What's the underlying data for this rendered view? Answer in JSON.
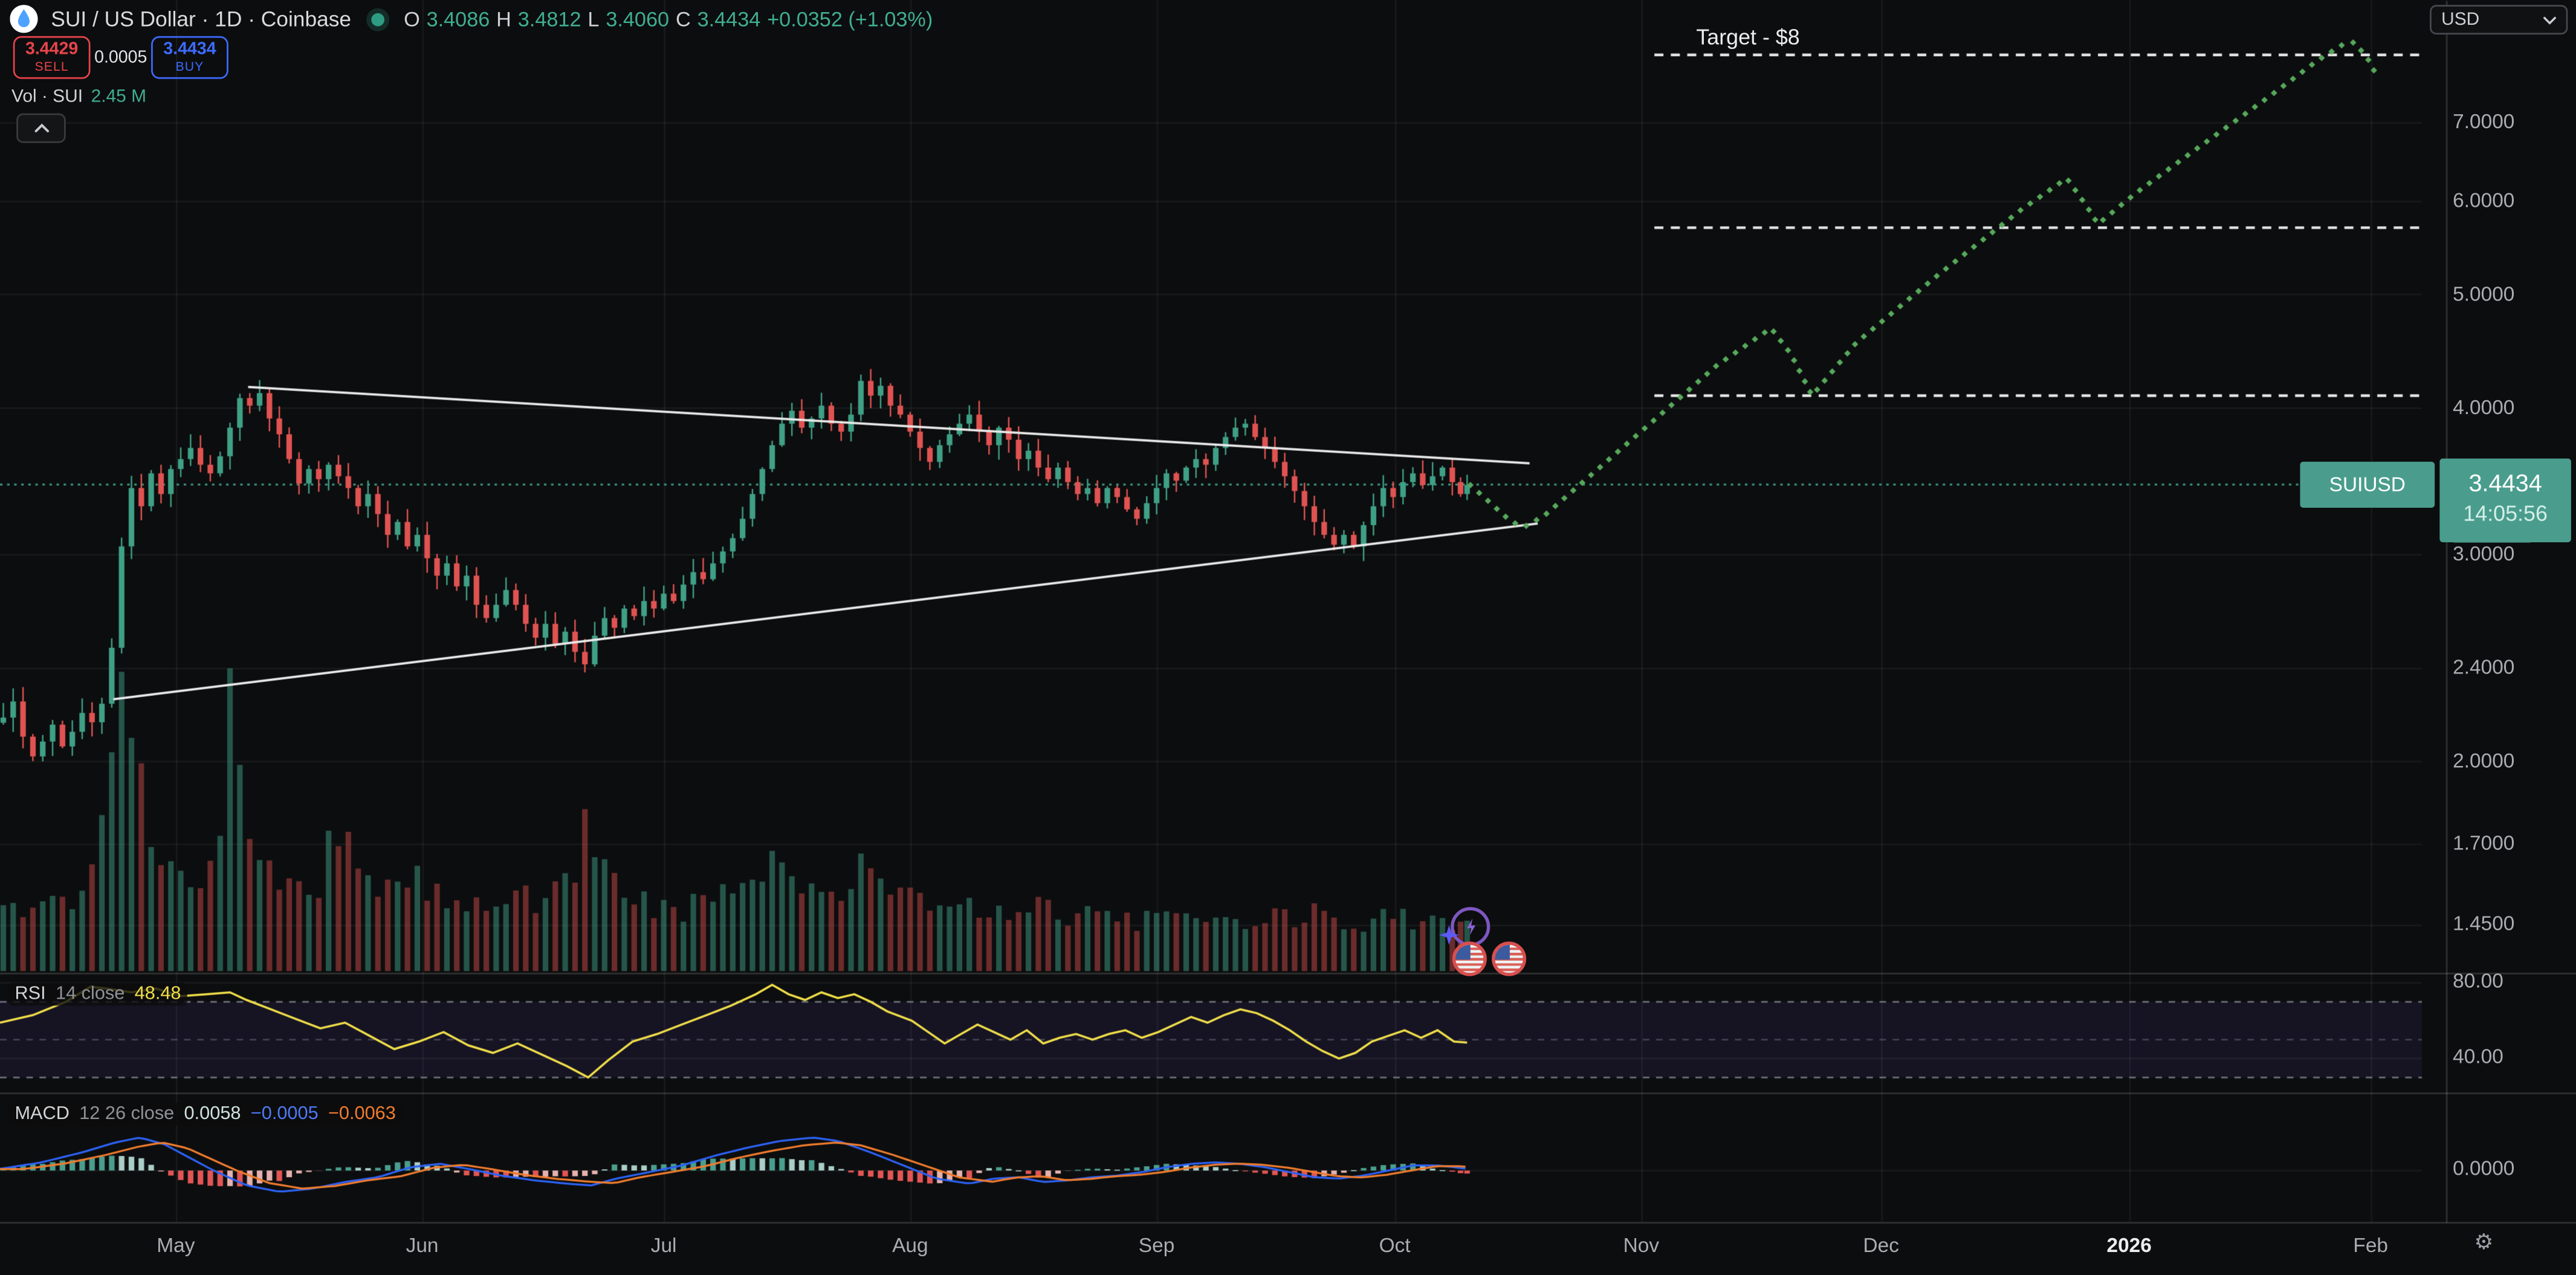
{
  "header": {
    "symbol": "SUI / US Dollar · 1D · Coinbase",
    "ohlc": {
      "o_label": "O",
      "o": "3.4086",
      "h_label": "H",
      "h": "3.4812",
      "l_label": "L",
      "l": "3.4060",
      "c_label": "C",
      "c": "3.4434",
      "change": "+0.0352 (+1.03%)"
    },
    "sell": {
      "price": "3.4429",
      "label": "SELL"
    },
    "spread": "0.0005",
    "buy": {
      "price": "3.4434",
      "label": "BUY"
    },
    "volume_row": {
      "label": "Vol · SUI",
      "value": "2.45 M"
    }
  },
  "annotation": {
    "target_label": "Target - $8"
  },
  "price_scale": {
    "currency": "USD",
    "price_label": {
      "symbol": "SUIUSD",
      "price": "3.4434",
      "countdown": "14:05:56"
    }
  },
  "panes": {
    "rsi": {
      "title": "RSI",
      "params": "14 close",
      "value": "48.48",
      "ticks": [
        {
          "label": "80.00",
          "value": 80
        },
        {
          "label": "40.00",
          "value": 40
        }
      ]
    },
    "macd": {
      "title": "MACD",
      "params": "12 26 close",
      "values": [
        "0.0058",
        "−0.0005",
        "−0.0063"
      ],
      "ticks": [
        {
          "label": "0.0000",
          "value": 0
        }
      ]
    }
  },
  "icons": {
    "gear": "⚙"
  },
  "colors": {
    "background": "#0c0d0e",
    "up": "#3fa086",
    "down": "#e05352",
    "vol_up": "rgba(63,160,134,0.5)",
    "vol_down": "rgba(224,83,82,0.45)",
    "projection": "#57a85c",
    "current_price_line": "#3fa086",
    "trendline": "#e9e9e9",
    "dashed_level": "#e6e6e6",
    "rsi_line": "#f0de4a",
    "rsi_band": "rgba(130,100,255,0.09)",
    "rsi_dash": "#85889a",
    "macd_line": "#2d62f5",
    "macd_signal": "#ef7c2e",
    "hist_pos_grow": "#4a9e8e",
    "hist_pos_fade": "#a9cec7",
    "hist_neg_grow": "#e35555",
    "hist_neg_fade": "#e5b1ad",
    "grid": "rgba(255,255,255,0.055)",
    "separator": "rgba(255,255,255,0.15)",
    "chip": "#4a9d8d",
    "sell_red": "#e8444b",
    "buy_blue": "#3d6bff"
  },
  "chart_data": {
    "type": "candlestick",
    "title": "SUI / US Dollar 1D Coinbase",
    "current_price": 3.4434,
    "y_ticks": [
      {
        "label": "7.0000",
        "value": 7.0
      },
      {
        "label": "6.0000",
        "value": 6.0
      },
      {
        "label": "5.0000",
        "value": 5.0
      },
      {
        "label": "4.0000",
        "value": 4.0
      },
      {
        "label": "3.0000",
        "value": 3.0
      },
      {
        "label": "2.4000",
        "value": 2.4
      },
      {
        "label": "2.0000",
        "value": 2.0
      },
      {
        "label": "1.7000",
        "value": 1.7
      },
      {
        "label": "1.4500",
        "value": 1.45
      }
    ],
    "x_labels": [
      {
        "label": "May",
        "x": 107
      },
      {
        "label": "Jun",
        "x": 257
      },
      {
        "label": "Jul",
        "x": 404
      },
      {
        "label": "Aug",
        "x": 554
      },
      {
        "label": "Sep",
        "x": 704
      },
      {
        "label": "Oct",
        "x": 849
      },
      {
        "label": "Nov",
        "x": 999
      },
      {
        "label": "Dec",
        "x": 1145
      },
      {
        "label": "2026",
        "x": 1296,
        "bold": true
      },
      {
        "label": "Feb",
        "x": 1443
      }
    ],
    "candles": [
      [
        2,
        2.18
      ],
      [
        8,
        2.25
      ],
      [
        14,
        2.1
      ],
      [
        20,
        2.02
      ],
      [
        26,
        2.08
      ],
      [
        32,
        2.15
      ],
      [
        38,
        2.06
      ],
      [
        44,
        2.12
      ],
      [
        50,
        2.2
      ],
      [
        56,
        2.16
      ],
      [
        62,
        2.24
      ],
      [
        68,
        2.5
      ],
      [
        74,
        3.05
      ],
      [
        80,
        3.42
      ],
      [
        86,
        3.3
      ],
      [
        92,
        3.52
      ],
      [
        98,
        3.38
      ],
      [
        104,
        3.55
      ],
      [
        110,
        3.62
      ],
      [
        116,
        3.7
      ],
      [
        122,
        3.58
      ],
      [
        128,
        3.52
      ],
      [
        134,
        3.64
      ],
      [
        140,
        3.85
      ],
      [
        146,
        4.08
      ],
      [
        152,
        4.02
      ],
      [
        158,
        4.12
      ],
      [
        164,
        3.92
      ],
      [
        170,
        3.8
      ],
      [
        176,
        3.62
      ],
      [
        182,
        3.45
      ],
      [
        188,
        3.55
      ],
      [
        194,
        3.48
      ],
      [
        200,
        3.58
      ],
      [
        206,
        3.5
      ],
      [
        212,
        3.42
      ],
      [
        218,
        3.3
      ],
      [
        224,
        3.38
      ],
      [
        230,
        3.25
      ],
      [
        236,
        3.12
      ],
      [
        242,
        3.2
      ],
      [
        248,
        3.05
      ],
      [
        254,
        3.12
      ],
      [
        260,
        2.98
      ],
      [
        266,
        2.88
      ],
      [
        272,
        2.95
      ],
      [
        278,
        2.82
      ],
      [
        284,
        2.88
      ],
      [
        290,
        2.72
      ],
      [
        296,
        2.65
      ],
      [
        302,
        2.72
      ],
      [
        308,
        2.8
      ],
      [
        314,
        2.72
      ],
      [
        320,
        2.62
      ],
      [
        326,
        2.55
      ],
      [
        332,
        2.62
      ],
      [
        338,
        2.52
      ],
      [
        344,
        2.58
      ],
      [
        350,
        2.48
      ],
      [
        356,
        2.42
      ],
      [
        362,
        2.56
      ],
      [
        368,
        2.65
      ],
      [
        374,
        2.6
      ],
      [
        380,
        2.7
      ],
      [
        386,
        2.66
      ],
      [
        392,
        2.74
      ],
      [
        398,
        2.7
      ],
      [
        404,
        2.78
      ],
      [
        410,
        2.74
      ],
      [
        416,
        2.83
      ],
      [
        422,
        2.9
      ],
      [
        428,
        2.86
      ],
      [
        434,
        2.95
      ],
      [
        440,
        3.02
      ],
      [
        446,
        3.1
      ],
      [
        452,
        3.22
      ],
      [
        458,
        3.38
      ],
      [
        464,
        3.55
      ],
      [
        470,
        3.72
      ],
      [
        476,
        3.88
      ],
      [
        482,
        3.98
      ],
      [
        488,
        3.85
      ],
      [
        494,
        3.92
      ],
      [
        500,
        4.02
      ],
      [
        506,
        3.88
      ],
      [
        512,
        3.82
      ],
      [
        518,
        3.95
      ],
      [
        524,
        4.22
      ],
      [
        530,
        4.1
      ],
      [
        536,
        4.18
      ],
      [
        542,
        4.02
      ],
      [
        548,
        3.95
      ],
      [
        554,
        3.82
      ],
      [
        560,
        3.7
      ],
      [
        566,
        3.6
      ],
      [
        572,
        3.72
      ],
      [
        578,
        3.8
      ],
      [
        584,
        3.88
      ],
      [
        590,
        3.95
      ],
      [
        596,
        3.82
      ],
      [
        602,
        3.72
      ],
      [
        608,
        3.85
      ],
      [
        614,
        3.76
      ],
      [
        620,
        3.62
      ],
      [
        626,
        3.68
      ],
      [
        632,
        3.56
      ],
      [
        638,
        3.48
      ],
      [
        644,
        3.56
      ],
      [
        650,
        3.46
      ],
      [
        656,
        3.38
      ],
      [
        662,
        3.42
      ],
      [
        668,
        3.32
      ],
      [
        674,
        3.42
      ],
      [
        680,
        3.36
      ],
      [
        686,
        3.28
      ],
      [
        692,
        3.22
      ],
      [
        698,
        3.32
      ],
      [
        704,
        3.42
      ],
      [
        710,
        3.52
      ],
      [
        716,
        3.47
      ],
      [
        722,
        3.56
      ],
      [
        728,
        3.62
      ],
      [
        734,
        3.58
      ],
      [
        740,
        3.7
      ],
      [
        746,
        3.78
      ],
      [
        752,
        3.85
      ],
      [
        758,
        3.88
      ],
      [
        764,
        3.78
      ],
      [
        770,
        3.7
      ],
      [
        776,
        3.6
      ],
      [
        782,
        3.5
      ],
      [
        788,
        3.4
      ],
      [
        794,
        3.3
      ],
      [
        800,
        3.2
      ],
      [
        806,
        3.12
      ],
      [
        812,
        3.06
      ],
      [
        818,
        3.12
      ],
      [
        824,
        3.05
      ],
      [
        830,
        3.18
      ],
      [
        836,
        3.3
      ],
      [
        842,
        3.42
      ],
      [
        848,
        3.36
      ],
      [
        854,
        3.46
      ],
      [
        860,
        3.52
      ],
      [
        866,
        3.44
      ],
      [
        872,
        3.5
      ],
      [
        878,
        3.56
      ],
      [
        884,
        3.46
      ],
      [
        889,
        3.38
      ],
      [
        893,
        3.44
      ]
    ],
    "volume_profile": [
      [
        0,
        45
      ],
      [
        30,
        38
      ],
      [
        55,
        50
      ],
      [
        62,
        120
      ],
      [
        70,
        165
      ],
      [
        78,
        150
      ],
      [
        85,
        110
      ],
      [
        95,
        80
      ],
      [
        105,
        65
      ],
      [
        120,
        60
      ],
      [
        133,
        55
      ],
      [
        140,
        160
      ],
      [
        148,
        85
      ],
      [
        160,
        60
      ],
      [
        175,
        50
      ],
      [
        195,
        55
      ],
      [
        208,
        95
      ],
      [
        220,
        52
      ],
      [
        235,
        45
      ],
      [
        250,
        55
      ],
      [
        270,
        45
      ],
      [
        290,
        40
      ],
      [
        310,
        42
      ],
      [
        330,
        45
      ],
      [
        345,
        50
      ],
      [
        358,
        95
      ],
      [
        370,
        60
      ],
      [
        385,
        45
      ],
      [
        400,
        40
      ],
      [
        415,
        38
      ],
      [
        430,
        42
      ],
      [
        445,
        48
      ],
      [
        460,
        58
      ],
      [
        472,
        72
      ],
      [
        485,
        60
      ],
      [
        500,
        48
      ],
      [
        515,
        45
      ],
      [
        527,
        70
      ],
      [
        540,
        52
      ],
      [
        555,
        45
      ],
      [
        570,
        40
      ],
      [
        585,
        42
      ],
      [
        600,
        38
      ],
      [
        615,
        36
      ],
      [
        630,
        38
      ],
      [
        645,
        35
      ],
      [
        660,
        33
      ],
      [
        675,
        32
      ],
      [
        690,
        30
      ],
      [
        705,
        33
      ],
      [
        720,
        32
      ],
      [
        735,
        30
      ],
      [
        750,
        32
      ],
      [
        765,
        30
      ],
      [
        780,
        32
      ],
      [
        795,
        35
      ],
      [
        810,
        33
      ],
      [
        825,
        30
      ],
      [
        840,
        32
      ],
      [
        855,
        35
      ],
      [
        865,
        30
      ],
      [
        875,
        28
      ],
      [
        885,
        26
      ],
      [
        893,
        30
      ]
    ],
    "trendlines": [
      {
        "points": [
          [
            151,
            4.17
          ],
          [
            931,
            3.59
          ]
        ]
      },
      {
        "points": [
          [
            69,
            2.26
          ],
          [
            936,
            3.19
          ]
        ]
      }
    ],
    "dashed_levels": [
      {
        "price": 8.0,
        "x1": 1007,
        "x2": 1474
      },
      {
        "price": 5.7,
        "x1": 1007,
        "x2": 1474
      },
      {
        "price": 4.1,
        "x1": 1007,
        "x2": 1474
      }
    ],
    "projection": [
      [
        895,
        3.44
      ],
      [
        920,
        3.2
      ],
      [
        928,
        3.17
      ],
      [
        940,
        3.24
      ],
      [
        1008,
        3.92
      ],
      [
        1045,
        4.35
      ],
      [
        1078,
        4.68
      ],
      [
        1090,
        4.45
      ],
      [
        1103,
        4.1
      ],
      [
        1130,
        4.55
      ],
      [
        1180,
        5.2
      ],
      [
        1230,
        5.9
      ],
      [
        1258,
        6.28
      ],
      [
        1270,
        5.95
      ],
      [
        1277,
        5.74
      ],
      [
        1300,
        6.1
      ],
      [
        1340,
        6.7
      ],
      [
        1380,
        7.35
      ],
      [
        1410,
        7.9
      ],
      [
        1425,
        8.15
      ],
      [
        1433,
        8.2
      ],
      [
        1441,
        7.95
      ],
      [
        1448,
        7.62
      ]
    ],
    "rsi_series": [
      [
        0,
        59
      ],
      [
        20,
        63
      ],
      [
        40,
        70
      ],
      [
        55,
        78
      ],
      [
        65,
        77
      ],
      [
        80,
        75
      ],
      [
        95,
        77
      ],
      [
        110,
        73
      ],
      [
        125,
        74
      ],
      [
        140,
        75
      ],
      [
        150,
        71
      ],
      [
        165,
        66
      ],
      [
        180,
        61
      ],
      [
        195,
        56
      ],
      [
        210,
        59
      ],
      [
        225,
        52
      ],
      [
        240,
        45
      ],
      [
        255,
        49
      ],
      [
        270,
        54
      ],
      [
        285,
        47
      ],
      [
        300,
        43
      ],
      [
        315,
        48
      ],
      [
        330,
        42
      ],
      [
        345,
        36
      ],
      [
        358,
        30
      ],
      [
        370,
        39
      ],
      [
        385,
        49
      ],
      [
        400,
        53
      ],
      [
        415,
        58
      ],
      [
        430,
        63
      ],
      [
        445,
        68
      ],
      [
        460,
        74
      ],
      [
        470,
        79
      ],
      [
        480,
        74
      ],
      [
        490,
        71
      ],
      [
        500,
        75
      ],
      [
        510,
        72
      ],
      [
        520,
        74
      ],
      [
        530,
        70
      ],
      [
        540,
        65
      ],
      [
        555,
        60
      ],
      [
        565,
        54
      ],
      [
        575,
        48
      ],
      [
        585,
        53
      ],
      [
        595,
        58
      ],
      [
        605,
        54
      ],
      [
        615,
        50
      ],
      [
        625,
        55
      ],
      [
        635,
        48
      ],
      [
        645,
        51
      ],
      [
        655,
        53
      ],
      [
        665,
        50
      ],
      [
        675,
        53
      ],
      [
        685,
        55
      ],
      [
        695,
        51
      ],
      [
        705,
        54
      ],
      [
        715,
        58
      ],
      [
        725,
        62
      ],
      [
        735,
        59
      ],
      [
        745,
        63
      ],
      [
        755,
        66
      ],
      [
        765,
        64
      ],
      [
        775,
        60
      ],
      [
        785,
        55
      ],
      [
        795,
        49
      ],
      [
        805,
        44
      ],
      [
        815,
        40
      ],
      [
        825,
        43
      ],
      [
        835,
        49
      ],
      [
        845,
        52
      ],
      [
        855,
        55
      ],
      [
        865,
        51
      ],
      [
        875,
        55
      ],
      [
        885,
        49
      ],
      [
        893,
        48.48
      ]
    ],
    "rsi_levels": {
      "upper": 70,
      "middle": 50,
      "lower": 30
    },
    "macd_series": [
      [
        0,
        0.006
      ],
      [
        25,
        0.029
      ],
      [
        50,
        0.065
      ],
      [
        70,
        0.1
      ],
      [
        85,
        0.118
      ],
      [
        100,
        0.094
      ],
      [
        115,
        0.047
      ],
      [
        130,
        0
      ],
      [
        150,
        -0.053
      ],
      [
        170,
        -0.076
      ],
      [
        190,
        -0.065
      ],
      [
        210,
        -0.041
      ],
      [
        230,
        -0.024
      ],
      [
        250,
        0.012
      ],
      [
        268,
        0.024
      ],
      [
        285,
        0.006
      ],
      [
        305,
        -0.018
      ],
      [
        325,
        -0.035
      ],
      [
        345,
        -0.047
      ],
      [
        360,
        -0.053
      ],
      [
        375,
        -0.029
      ],
      [
        395,
        -0.006
      ],
      [
        415,
        0.018
      ],
      [
        435,
        0.053
      ],
      [
        455,
        0.082
      ],
      [
        475,
        0.106
      ],
      [
        495,
        0.118
      ],
      [
        510,
        0.106
      ],
      [
        530,
        0.065
      ],
      [
        550,
        0.018
      ],
      [
        570,
        -0.029
      ],
      [
        590,
        -0.047
      ],
      [
        605,
        -0.029
      ],
      [
        620,
        -0.024
      ],
      [
        635,
        -0.041
      ],
      [
        650,
        -0.035
      ],
      [
        665,
        -0.024
      ],
      [
        680,
        -0.018
      ],
      [
        695,
        -0.006
      ],
      [
        710,
        0.012
      ],
      [
        725,
        0.024
      ],
      [
        740,
        0.029
      ],
      [
        755,
        0.024
      ],
      [
        770,
        0.012
      ],
      [
        785,
        -0.006
      ],
      [
        800,
        -0.024
      ],
      [
        815,
        -0.029
      ],
      [
        830,
        -0.018
      ],
      [
        845,
        0
      ],
      [
        860,
        0.018
      ],
      [
        875,
        0.018
      ],
      [
        885,
        0.012
      ],
      [
        893,
        0.006
      ]
    ]
  }
}
